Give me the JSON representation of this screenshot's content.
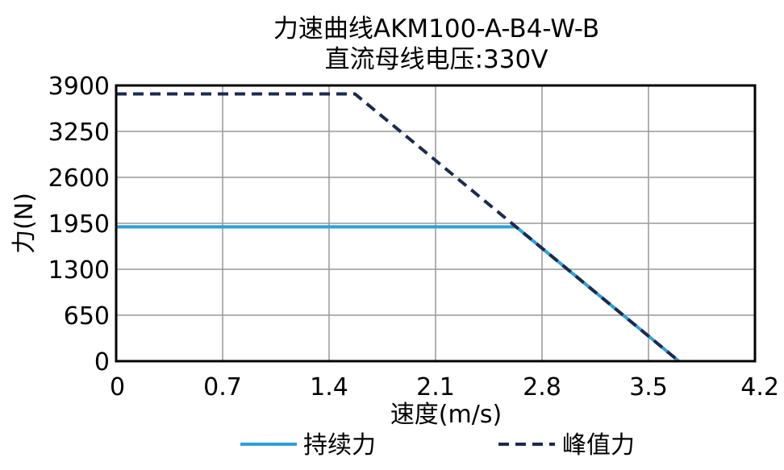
{
  "chart_data": {
    "type": "line",
    "title": "力速曲线AKM100-A-B4-W-B",
    "subtitle": "直流母线电压:330V",
    "xlabel": "速度(m/s)",
    "ylabel": "力(N)",
    "xlim": [
      0,
      4.2
    ],
    "ylim": [
      0,
      3900
    ],
    "xticks": [
      "0",
      "0.7",
      "1.4",
      "2.1",
      "2.8",
      "3.5",
      "4.2"
    ],
    "yticks": [
      "0",
      "650",
      "1300",
      "1950",
      "2600",
      "3250",
      "3900"
    ],
    "grid": true,
    "legend": "bottom",
    "series": [
      {
        "name": "持续力",
        "style": "solid",
        "color": "#2f9fd8",
        "x": [
          0,
          2.63,
          3.7
        ],
        "y": [
          1900,
          1900,
          0
        ]
      },
      {
        "name": "峰值力",
        "style": "dashed",
        "color": "#1c2a4d",
        "x": [
          0,
          1.57,
          3.7
        ],
        "y": [
          3780,
          3780,
          0
        ]
      }
    ]
  }
}
